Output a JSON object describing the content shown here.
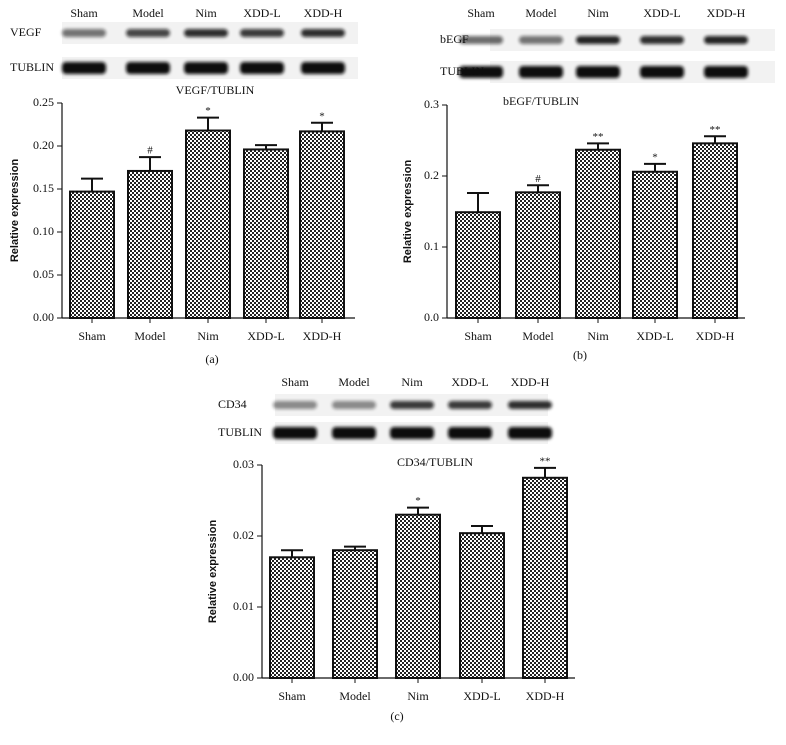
{
  "chart_data": [
    {
      "type": "bar",
      "title": "VEGF/TUBLIN",
      "panel_label": "(a)",
      "ylabel": "Relative expression",
      "blot_lanes": [
        "Sham",
        "Model",
        "Nim",
        "XDD-L",
        "XDD-H"
      ],
      "blot_rows": [
        "VEGF",
        "TUBLIN"
      ],
      "categories": [
        "Sham",
        "Model",
        "Nim",
        "XDD-L",
        "XDD-H"
      ],
      "values": [
        0.147,
        0.171,
        0.218,
        0.196,
        0.217
      ],
      "errors": [
        0.015,
        0.016,
        0.015,
        0.005,
        0.01
      ],
      "annotations": [
        null,
        "#",
        "*",
        null,
        "*"
      ],
      "ylim": [
        0,
        0.25
      ],
      "yticks": [
        {
          "value": 0,
          "label": "0.00"
        },
        0.05,
        {
          "value": 0.1,
          "label": "0.10"
        },
        0.15,
        {
          "value": 0.2,
          "label": "0.20"
        },
        0.25
      ]
    },
    {
      "type": "bar",
      "title": "bEGF/TUBLIN",
      "panel_label": "(b)",
      "ylabel": "Relative expression",
      "blot_lanes": [
        "Sham",
        "Model",
        "Nim",
        "XDD-L",
        "XDD-H"
      ],
      "blot_rows": [
        "bEGF",
        "TUBLIN"
      ],
      "categories": [
        "Sham",
        "Model",
        "Nim",
        "XDD-L",
        "XDD-H"
      ],
      "values": [
        0.149,
        0.177,
        0.237,
        0.206,
        0.246
      ],
      "errors": [
        0.027,
        0.01,
        0.009,
        0.011,
        0.01
      ],
      "annotations": [
        null,
        "#",
        "**",
        "*",
        "**"
      ],
      "ylim": [
        0,
        0.3
      ],
      "yticks": [
        {
          "value": 0,
          "label": "0.0"
        },
        0.1,
        0.2,
        0.3
      ]
    },
    {
      "type": "bar",
      "title": "CD34/TUBLIN",
      "panel_label": "(c)",
      "ylabel": "Relative expression",
      "blot_lanes": [
        "Sham",
        "Model",
        "Nim",
        "XDD-L",
        "XDD-H"
      ],
      "blot_rows": [
        "CD34",
        "TUBLIN"
      ],
      "categories": [
        "Sham",
        "Model",
        "Nim",
        "XDD-L",
        "XDD-H"
      ],
      "values": [
        0.017,
        0.018,
        0.023,
        0.0204,
        0.0282
      ],
      "errors": [
        0.001,
        0.0005,
        0.001,
        0.001,
        0.0014
      ],
      "annotations": [
        null,
        null,
        "*",
        null,
        "**"
      ],
      "ylim": [
        0,
        0.03
      ],
      "yticks": [
        {
          "value": 0,
          "label": "0.00"
        },
        0.01,
        0.02,
        0.03
      ]
    }
  ]
}
